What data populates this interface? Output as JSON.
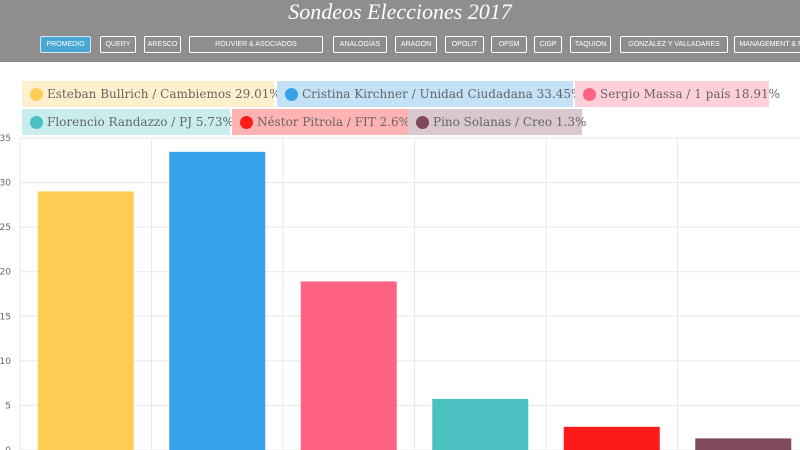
{
  "header": {
    "title": "Sondeos Elecciones 2017",
    "nav": [
      {
        "label": "PROMEDIO",
        "active": true
      },
      {
        "label": "QUERY",
        "active": false
      },
      {
        "label": "ARESCO",
        "active": false
      },
      {
        "label": "ROUVIER & ASOCIADOS",
        "active": false
      },
      {
        "label": "ANALOGÍAS",
        "active": false
      },
      {
        "label": "ARAGON",
        "active": false
      },
      {
        "label": "OPOLIT",
        "active": false
      },
      {
        "label": "OPSM",
        "active": false
      },
      {
        "label": "CIGP",
        "active": false
      },
      {
        "label": "TAQUION",
        "active": false
      },
      {
        "label": "GONZÁLEZ Y VALLADARES",
        "active": false
      },
      {
        "label": "MANAGEMENT & FIT",
        "active": false
      }
    ]
  },
  "chart_data": {
    "type": "bar",
    "grid": true,
    "legend_position": "top",
    "ylim": [
      0,
      35
    ],
    "yticks": [
      "0",
      "5",
      "10",
      "15",
      "20",
      "25",
      "30",
      "35"
    ],
    "series": [
      {
        "label": "Esteban Bullrich / Cambiemos 29.01%",
        "value": 29.01,
        "color": "#ffcd56",
        "legend_bg": "#fef0cc"
      },
      {
        "label": "Cristina Kirchner / Unidad Ciudadana 33.45%",
        "value": 33.45,
        "color": "#36a2eb",
        "legend_bg": "#c3e2f8"
      },
      {
        "label": "Sergio Massa / 1 país 18.91%",
        "value": 18.91,
        "color": "#ff6384",
        "legend_bg": "#ffd0da"
      },
      {
        "label": "Florencio Randazzo / PJ 5.73%",
        "value": 5.73,
        "color": "#4bc0c0",
        "legend_bg": "#c9ecec"
      },
      {
        "label": "Néstor Pitrola / FIT 2.6%",
        "value": 2.6,
        "color": "#ff1a1a",
        "legend_bg": "#ffb3b3"
      },
      {
        "label": "Pino Solanas / Creo 1.3%",
        "value": 1.3,
        "color": "#7f4a5b",
        "legend_bg": "#d9c9ce"
      }
    ]
  }
}
